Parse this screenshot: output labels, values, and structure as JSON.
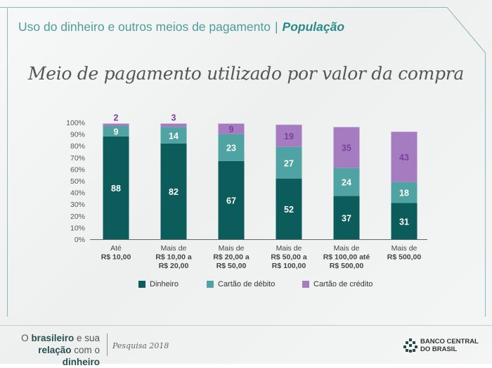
{
  "header": {
    "subtitle": "Uso do dinheiro e outros meios de pagamento",
    "separator": "|",
    "section": "População"
  },
  "colors": {
    "dinheiro": "#0d5c5c",
    "debito": "#4fa3a3",
    "credito": "#a67cc0"
  },
  "chart_data": {
    "type": "bar",
    "stacked": true,
    "title": "Meio de pagamento utilizado por valor da compra",
    "categories": [
      [
        "Até",
        "R$ 10,00"
      ],
      [
        "Mais de",
        "R$ 10,00 a",
        "R$ 20,00"
      ],
      [
        "Mais de",
        "R$ 20,00 a",
        "R$ 50,00"
      ],
      [
        "Mais de",
        "R$ 50,00 a",
        "R$ 100,00"
      ],
      [
        "Mais de",
        "R$ 100,00 até",
        "R$ 500,00"
      ],
      [
        "Mais de",
        "R$ 500,00"
      ]
    ],
    "series": [
      {
        "name": "Dinheiro",
        "values": [
          88,
          82,
          67,
          52,
          37,
          31
        ]
      },
      {
        "name": "Cartão de débito",
        "values": [
          9,
          14,
          23,
          27,
          24,
          18
        ]
      },
      {
        "name": "Cartão de crédito",
        "values": [
          2,
          3,
          9,
          19,
          35,
          43
        ]
      }
    ],
    "yticks": [
      "0%",
      "10%",
      "20%",
      "30%",
      "40%",
      "50%",
      "60%",
      "70%",
      "80%",
      "90%",
      "100%"
    ],
    "ylim": [
      0,
      100
    ],
    "legend": [
      "Dinheiro",
      "Cartão de débito",
      "Cartão de crédito"
    ]
  },
  "footer": {
    "line1_pre": "O ",
    "line1_bold": "brasileiro",
    "line1_post": " e sua",
    "line2_bold1": "relação",
    "line2_mid": " com o ",
    "line2_bold2": "dinheiro",
    "survey": "Pesquisa 2018",
    "bank_line1": "BANCO CENTRAL",
    "bank_line2": "DO BRASIL"
  }
}
